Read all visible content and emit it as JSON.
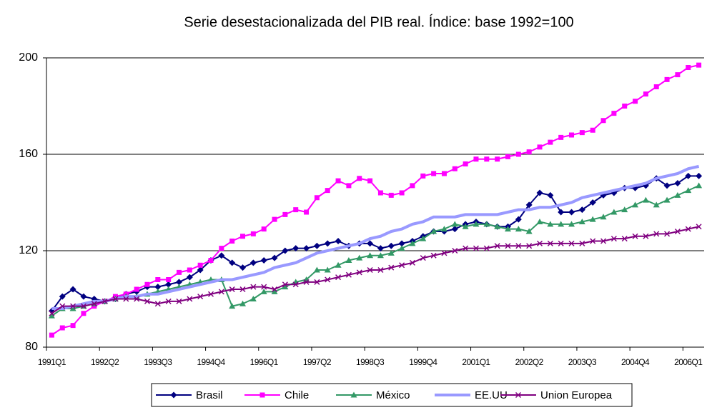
{
  "chart_data": {
    "type": "line",
    "title": "Serie desestacionalizada del PIB real. Índice: base 1992=100",
    "categories": [
      "1991Q1",
      null,
      null,
      null,
      null,
      "1992Q2",
      null,
      null,
      null,
      null,
      "1993Q3",
      null,
      null,
      null,
      null,
      "1994Q4",
      null,
      null,
      null,
      null,
      "1996Q1",
      null,
      null,
      null,
      null,
      "1997Q2",
      null,
      null,
      null,
      null,
      "1998Q3",
      null,
      null,
      null,
      null,
      "1999Q4",
      null,
      null,
      null,
      null,
      "2001Q1",
      null,
      null,
      null,
      null,
      "2002Q2",
      null,
      null,
      null,
      null,
      "2003Q3",
      null,
      null,
      null,
      null,
      "2004Q4",
      null,
      null,
      null,
      null,
      "2006Q1",
      null
    ],
    "ylim": [
      80,
      200
    ],
    "yticks": [
      80,
      120,
      160,
      200
    ],
    "grid": true,
    "series": [
      {
        "name": "Brasil",
        "color": "#000080",
        "marker": "diamond",
        "values": [
          95,
          101,
          104,
          101,
          100,
          99,
          100,
          102,
          103,
          105,
          105,
          106,
          107,
          109,
          112,
          116,
          118,
          115,
          113,
          115,
          116,
          117,
          120,
          121,
          121,
          122,
          123,
          124,
          122,
          123,
          123,
          121,
          122,
          123,
          124,
          126,
          128,
          128,
          129,
          131,
          132,
          131,
          130,
          130,
          133,
          139,
          144,
          143,
          136,
          136,
          137,
          140,
          143,
          144,
          146,
          146,
          147,
          150,
          147,
          148,
          151,
          151
        ]
      },
      {
        "name": "Chile",
        "color": "#ff00ff",
        "marker": "square",
        "values": [
          85,
          88,
          89,
          94,
          97,
          99,
          101,
          102,
          104,
          106,
          108,
          108,
          111,
          112,
          114,
          116,
          121,
          124,
          126,
          127,
          129,
          133,
          135,
          137,
          136,
          142,
          145,
          149,
          147,
          150,
          149,
          144,
          143,
          144,
          147,
          151,
          152,
          152,
          154,
          156,
          158,
          158,
          158,
          159,
          160,
          161,
          163,
          165,
          167,
          168,
          169,
          170,
          174,
          177,
          180,
          182,
          185,
          188,
          191,
          193,
          196,
          197
        ]
      },
      {
        "name": "México",
        "color": "#339966",
        "marker": "triangle",
        "values": [
          93,
          96,
          96,
          97,
          98,
          99,
          100,
          101,
          101,
          102,
          103,
          104,
          105,
          106,
          107,
          108,
          108,
          97,
          98,
          100,
          103,
          103,
          105,
          107,
          108,
          112,
          112,
          114,
          116,
          117,
          118,
          118,
          119,
          121,
          123,
          125,
          128,
          129,
          131,
          130,
          131,
          131,
          130,
          129,
          129,
          128,
          132,
          131,
          131,
          131,
          132,
          133,
          134,
          136,
          137,
          139,
          141,
          139,
          141,
          143,
          145,
          147
        ]
      },
      {
        "name": "EE.UU",
        "color": "#9999ff",
        "marker": "none",
        "values": [
          96,
          96,
          97,
          98,
          99,
          99,
          100,
          101,
          101,
          102,
          102,
          103,
          104,
          105,
          106,
          107,
          108,
          108,
          109,
          110,
          111,
          113,
          114,
          115,
          117,
          119,
          120,
          121,
          122,
          123,
          125,
          126,
          128,
          129,
          131,
          132,
          134,
          134,
          134,
          135,
          135,
          135,
          135,
          136,
          137,
          137,
          138,
          138,
          139,
          140,
          142,
          143,
          144,
          145,
          146,
          147,
          148,
          150,
          151,
          152,
          154,
          155
        ]
      },
      {
        "name": "Union Europea",
        "color": "#800080",
        "marker": "x",
        "values": [
          94,
          97,
          97,
          97,
          98,
          99,
          100,
          100,
          100,
          99,
          98,
          99,
          99,
          100,
          101,
          102,
          103,
          104,
          104,
          105,
          105,
          104,
          106,
          106,
          107,
          107,
          108,
          109,
          110,
          111,
          112,
          112,
          113,
          114,
          115,
          117,
          118,
          119,
          120,
          121,
          121,
          121,
          122,
          122,
          122,
          122,
          123,
          123,
          123,
          123,
          123,
          124,
          124,
          125,
          125,
          126,
          126,
          127,
          127,
          128,
          129,
          130
        ]
      }
    ]
  }
}
